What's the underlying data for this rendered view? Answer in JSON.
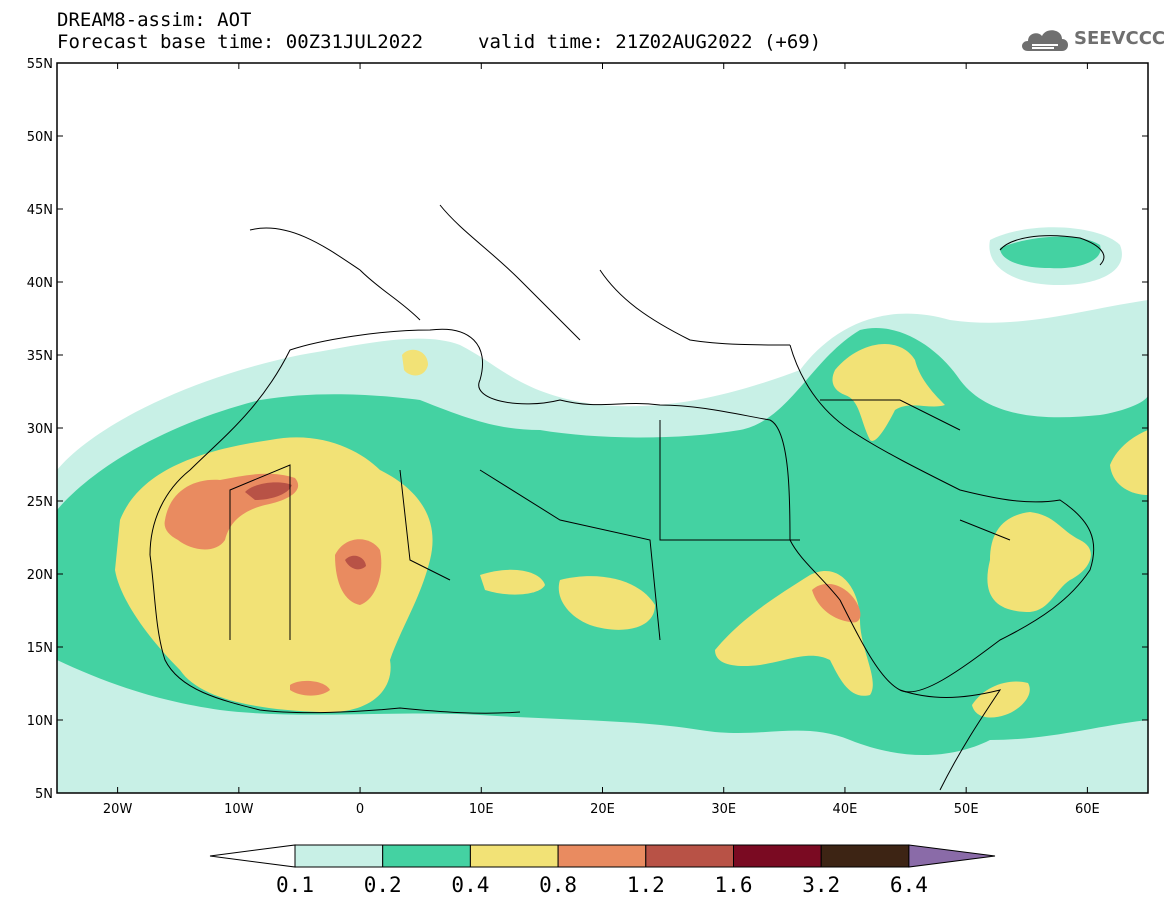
{
  "header": {
    "model": "DREAM8-assim: AOT",
    "base_time": "Forecast base time: 00Z31JUL2022",
    "valid_time": "valid time: 21Z02AUG2022 (+69)"
  },
  "logo": {
    "text": "SEEVCCC",
    "icon": "cloud-icon"
  },
  "map": {
    "lon_range": [
      -25,
      65
    ],
    "lat_range": [
      5,
      55
    ],
    "lat_labels": [
      {
        "lat": 55,
        "text": "55N"
      },
      {
        "lat": 50,
        "text": "50N"
      },
      {
        "lat": 45,
        "text": "45N"
      },
      {
        "lat": 40,
        "text": "40N"
      },
      {
        "lat": 35,
        "text": "35N"
      },
      {
        "lat": 30,
        "text": "30N"
      },
      {
        "lat": 25,
        "text": "25N"
      },
      {
        "lat": 20,
        "text": "20N"
      },
      {
        "lat": 15,
        "text": "15N"
      },
      {
        "lat": 10,
        "text": "10N"
      },
      {
        "lat": 5,
        "text": "5N"
      }
    ],
    "lon_labels": [
      {
        "lon": -20,
        "text": "20W"
      },
      {
        "lon": -10,
        "text": "10W"
      },
      {
        "lon": 0,
        "text": "0"
      },
      {
        "lon": 10,
        "text": "10E"
      },
      {
        "lon": 20,
        "text": "20E"
      },
      {
        "lon": 30,
        "text": "30E"
      },
      {
        "lon": 40,
        "text": "40E"
      },
      {
        "lon": 50,
        "text": "50E"
      },
      {
        "lon": 60,
        "text": "60E"
      }
    ]
  },
  "colorbar": {
    "colors": [
      "#ffffff",
      "#c8f0e6",
      "#44d2a2",
      "#f2e276",
      "#e98b60",
      "#b85246",
      "#7a0a22",
      "#3d2414",
      "#8a6ba8"
    ],
    "labels": [
      "0.1",
      "0.2",
      "0.4",
      "0.8",
      "1.2",
      "1.6",
      "3.2",
      "6.4"
    ]
  },
  "levels": [
    {
      "name": "0.1-0.2",
      "color": "#c8f0e6"
    },
    {
      "name": "0.2-0.4",
      "color": "#44d2a2"
    },
    {
      "name": "0.4-0.8",
      "color": "#f2e276"
    },
    {
      "name": "0.8-1.2",
      "color": "#e98b60"
    },
    {
      "name": "1.2-1.6",
      "color": "#b85246"
    }
  ]
}
